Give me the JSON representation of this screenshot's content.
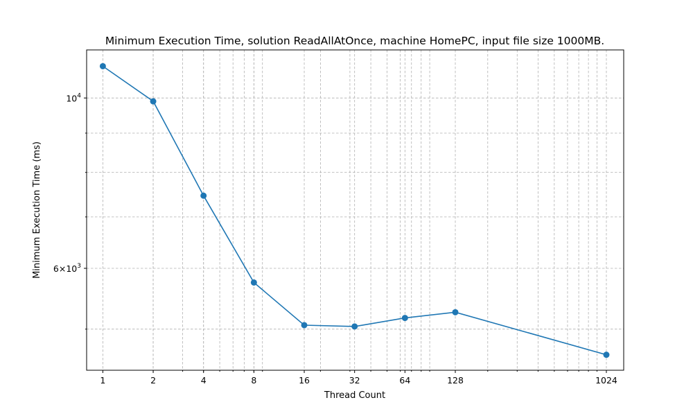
{
  "chart_data": {
    "type": "line",
    "title": "Minimum Execution Time, solution ReadAllAtOnce, machine HomePC, input file size 1000MB.",
    "xlabel": "Thread Count",
    "ylabel": "Minimum Execution Time (ms)",
    "x_scale": "log2",
    "y_scale": "log",
    "xlim": [
      0.8,
      1300
    ],
    "ylim": [
      4420,
      11550
    ],
    "grid": true,
    "x_ticks": [
      1,
      2,
      4,
      8,
      16,
      32,
      64,
      128,
      1024
    ],
    "x_tick_labels": [
      "1",
      "2",
      "4",
      "8",
      "16",
      "32",
      "64",
      "128",
      "1024"
    ],
    "y_major_ticks": [
      {
        "value": 10000,
        "base": "10",
        "exp": "4"
      },
      {
        "value": 6000,
        "mant": "6",
        "base": "10",
        "exp": "3"
      }
    ],
    "y_minor_ticks": [
      5000,
      7000,
      8000,
      9000
    ],
    "color": "#1f77b4",
    "series": [
      {
        "x": [
          1,
          2,
          4,
          8,
          16,
          32,
          64,
          128,
          1024
        ],
        "values": [
          11000,
          9900,
          7460,
          5750,
          5060,
          5040,
          5170,
          5260,
          4630
        ]
      }
    ]
  }
}
